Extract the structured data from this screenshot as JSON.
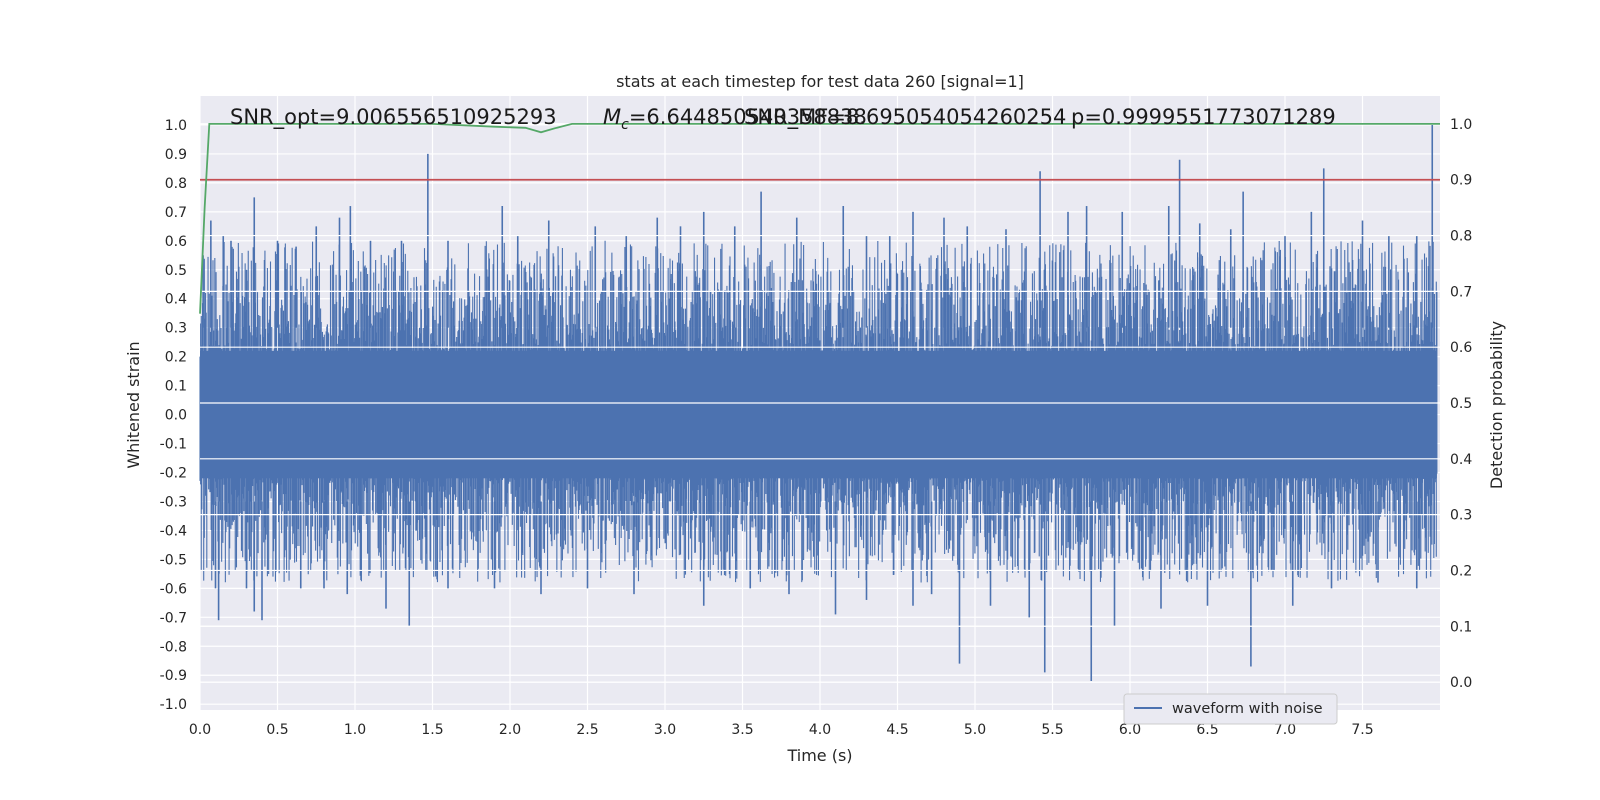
{
  "chart_data": {
    "type": "line",
    "title": "stats at each timestep for test data 260 [signal=1]",
    "xlabel": "Time (s)",
    "ylabel": "Whitened strain",
    "y2label": "Detection probability",
    "xlim": [
      0,
      8
    ],
    "ylim": [
      -1.02,
      1.1
    ],
    "y2lim": [
      -0.05,
      1.05
    ],
    "xticks": [
      "0.0",
      "0.5",
      "1.0",
      "1.5",
      "2.0",
      "2.5",
      "3.0",
      "3.5",
      "4.0",
      "4.5",
      "5.0",
      "5.5",
      "6.0",
      "6.5",
      "7.0",
      "7.5"
    ],
    "yticks": [
      "-1.0",
      "-0.9",
      "-0.8",
      "-0.7",
      "-0.6",
      "-0.5",
      "-0.4",
      "-0.3",
      "-0.2",
      "-0.1",
      "0.0",
      "0.1",
      "0.2",
      "0.3",
      "0.4",
      "0.5",
      "0.6",
      "0.7",
      "0.8",
      "0.9",
      "1.0"
    ],
    "y2ticks": [
      "0.0",
      "0.1",
      "0.2",
      "0.3",
      "0.4",
      "0.5",
      "0.6",
      "0.7",
      "0.8",
      "0.9",
      "1.0"
    ],
    "grid": true,
    "legend_position": "lower-right",
    "annotations": {
      "snr_opt": "SNR_opt=9.006556510925293",
      "mc": "=6.644850540358838",
      "mc_symbol": "M",
      "mc_sub": "c",
      "snr_mf": "SNR_MF=8.695054054260254",
      "prob": "p=0.9999551773071289"
    },
    "series": [
      {
        "name": "waveform with noise",
        "axis": "left",
        "color": "#4c72b0",
        "spikes_up": [
          [
            0.02,
            0.55
          ],
          [
            0.07,
            0.67
          ],
          [
            0.15,
            0.62
          ],
          [
            0.2,
            0.6
          ],
          [
            0.3,
            0.5
          ],
          [
            0.35,
            0.75
          ],
          [
            0.5,
            0.6
          ],
          [
            0.62,
            0.58
          ],
          [
            0.75,
            0.65
          ],
          [
            0.9,
            0.68
          ],
          [
            0.97,
            0.72
          ],
          [
            1.1,
            0.6
          ],
          [
            1.3,
            0.6
          ],
          [
            1.47,
            0.9
          ],
          [
            1.6,
            0.6
          ],
          [
            1.95,
            0.72
          ],
          [
            2.05,
            0.62
          ],
          [
            2.25,
            0.67
          ],
          [
            2.55,
            0.65
          ],
          [
            2.75,
            0.62
          ],
          [
            2.95,
            0.68
          ],
          [
            3.1,
            0.65
          ],
          [
            3.25,
            0.7
          ],
          [
            3.45,
            0.65
          ],
          [
            3.62,
            0.77
          ],
          [
            3.85,
            0.68
          ],
          [
            4.15,
            0.72
          ],
          [
            4.3,
            0.62
          ],
          [
            4.45,
            0.62
          ],
          [
            4.6,
            0.7
          ],
          [
            4.8,
            0.68
          ],
          [
            4.95,
            0.65
          ],
          [
            5.2,
            0.64
          ],
          [
            5.42,
            0.84
          ],
          [
            5.6,
            0.7
          ],
          [
            5.72,
            0.72
          ],
          [
            5.95,
            0.7
          ],
          [
            6.25,
            0.72
          ],
          [
            6.32,
            0.88
          ],
          [
            6.45,
            0.66
          ],
          [
            6.65,
            0.64
          ],
          [
            6.73,
            0.77
          ],
          [
            7.0,
            0.62
          ],
          [
            7.17,
            0.7
          ],
          [
            7.25,
            0.85
          ],
          [
            7.5,
            0.67
          ],
          [
            7.67,
            0.62
          ],
          [
            7.85,
            0.62
          ],
          [
            7.95,
            1.0
          ]
        ],
        "spikes_down": [
          [
            0.1,
            -0.6
          ],
          [
            0.12,
            -0.71
          ],
          [
            0.3,
            -0.6
          ],
          [
            0.35,
            -0.68
          ],
          [
            0.4,
            -0.71
          ],
          [
            0.65,
            -0.6
          ],
          [
            0.8,
            -0.6
          ],
          [
            0.95,
            -0.62
          ],
          [
            1.2,
            -0.67
          ],
          [
            1.35,
            -0.73
          ],
          [
            1.6,
            -0.6
          ],
          [
            1.9,
            -0.6
          ],
          [
            2.2,
            -0.62
          ],
          [
            2.5,
            -0.6
          ],
          [
            2.8,
            -0.62
          ],
          [
            3.25,
            -0.66
          ],
          [
            3.55,
            -0.6
          ],
          [
            3.8,
            -0.62
          ],
          [
            4.1,
            -0.69
          ],
          [
            4.3,
            -0.64
          ],
          [
            4.6,
            -0.66
          ],
          [
            4.72,
            -0.62
          ],
          [
            4.9,
            -0.86
          ],
          [
            5.1,
            -0.66
          ],
          [
            5.35,
            -0.7
          ],
          [
            5.45,
            -0.89
          ],
          [
            5.75,
            -0.92
          ],
          [
            5.9,
            -0.73
          ],
          [
            6.2,
            -0.67
          ],
          [
            6.5,
            -0.66
          ],
          [
            6.78,
            -0.87
          ],
          [
            7.05,
            -0.66
          ],
          [
            7.3,
            -0.6
          ],
          [
            7.6,
            -0.58
          ],
          [
            7.85,
            -0.6
          ]
        ]
      },
      {
        "name": "",
        "axis": "right",
        "color": "#55a868",
        "points": [
          [
            0.0,
            0.66
          ],
          [
            0.03,
            0.85
          ],
          [
            0.06,
            1.0
          ],
          [
            0.5,
            1.0
          ],
          [
            1.5,
            1.0
          ],
          [
            1.9,
            0.995
          ],
          [
            2.1,
            0.993
          ],
          [
            2.2,
            0.985
          ],
          [
            2.3,
            0.993
          ],
          [
            2.4,
            1.0
          ],
          [
            4.0,
            1.0
          ],
          [
            6.0,
            1.0
          ],
          [
            8.0,
            1.0
          ]
        ]
      },
      {
        "name": "",
        "axis": "right",
        "color": "#c44e52",
        "points": [
          [
            0.0,
            0.9
          ],
          [
            8.0,
            0.9
          ]
        ]
      }
    ]
  }
}
